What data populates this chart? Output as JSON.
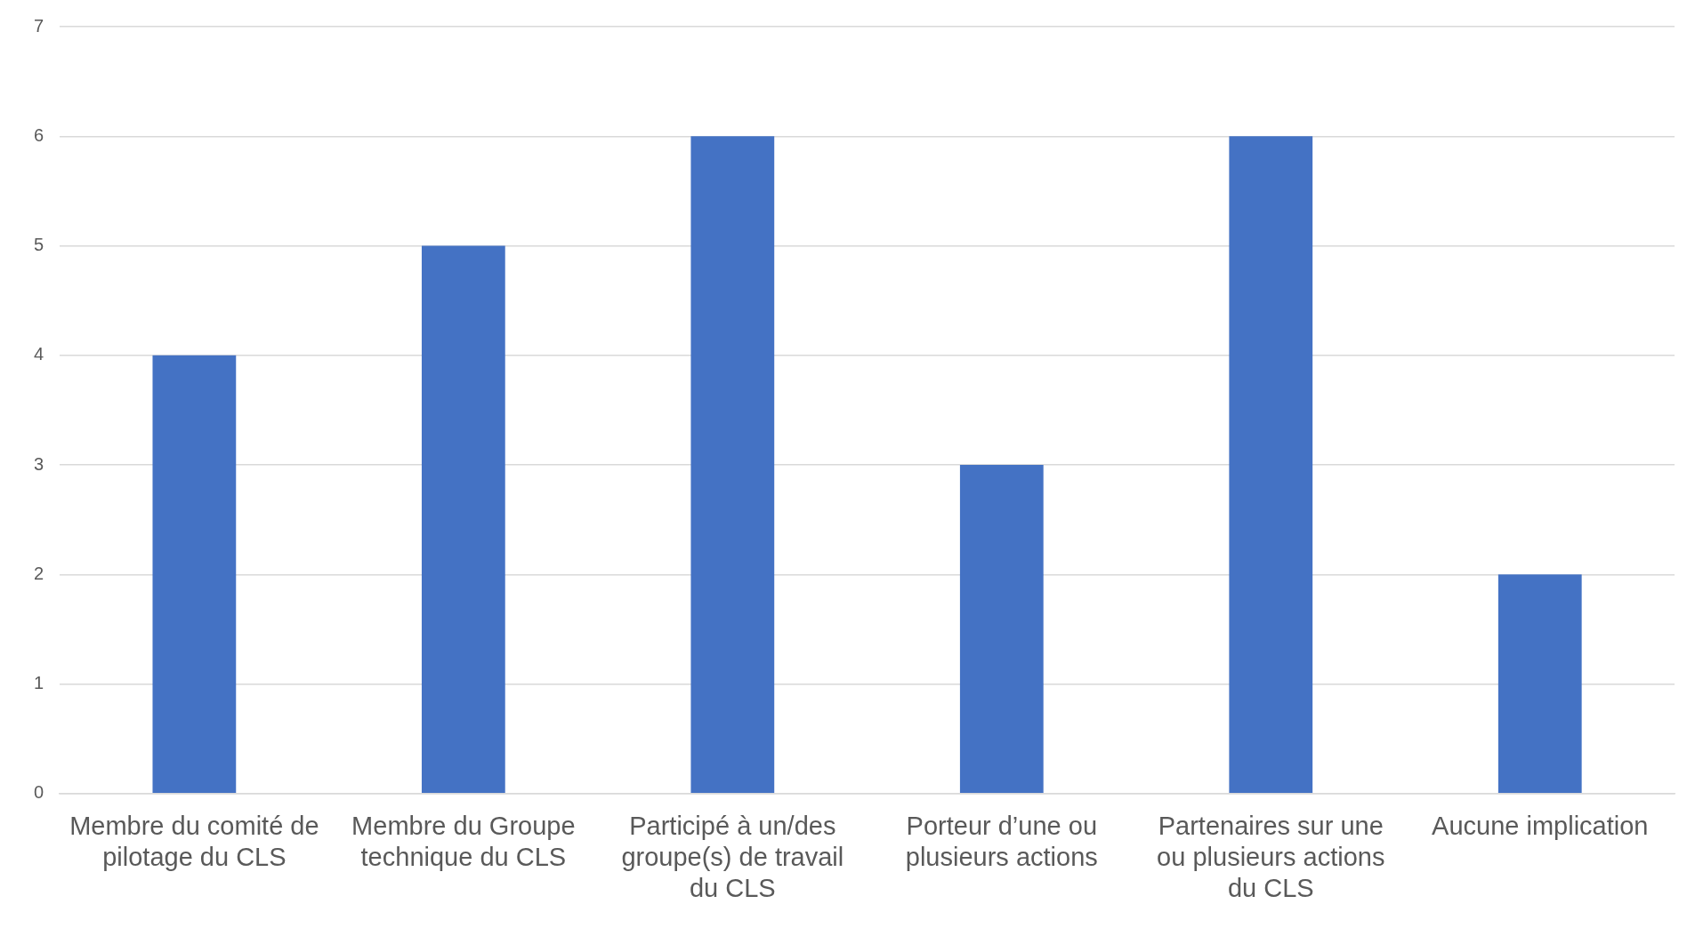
{
  "chart_data": {
    "type": "bar",
    "categories": [
      "Membre du comité de pilotage du CLS",
      "Membre du Groupe technique du CLS",
      "Participé à un/des groupe(s) de travail du CLS",
      "Porteur d’une ou plusieurs actions",
      "Partenaires sur une ou plusieurs actions du CLS",
      "Aucune implication"
    ],
    "values": [
      4,
      5,
      6,
      3,
      6,
      2
    ],
    "color": "#4472c4",
    "ylim": [
      0,
      7
    ],
    "yticks": [
      0,
      1,
      2,
      3,
      4,
      5,
      6,
      7
    ],
    "grid": "y",
    "legend": false
  }
}
